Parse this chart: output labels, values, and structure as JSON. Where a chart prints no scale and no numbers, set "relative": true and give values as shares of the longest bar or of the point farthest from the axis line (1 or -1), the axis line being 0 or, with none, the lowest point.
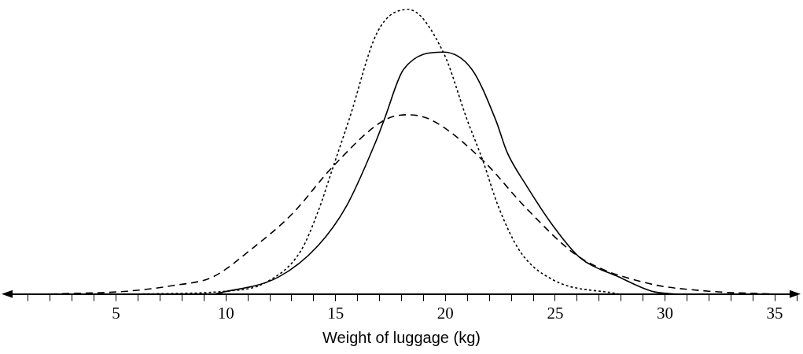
{
  "chart_data": {
    "type": "line",
    "xlabel": "Weight of luggage (kg)",
    "relative": true,
    "marker": "none",
    "grid": false,
    "legend": false,
    "xlim": [
      0,
      36
    ],
    "xticks": [
      {
        "value": 1,
        "label": null
      },
      {
        "value": 2,
        "label": null
      },
      {
        "value": 3,
        "label": null
      },
      {
        "value": 4,
        "label": null
      },
      5,
      {
        "value": 6,
        "label": null
      },
      {
        "value": 7,
        "label": null
      },
      {
        "value": 8,
        "label": null
      },
      {
        "value": 9,
        "label": null
      },
      10,
      {
        "value": 11,
        "label": null
      },
      {
        "value": 12,
        "label": null
      },
      {
        "value": 13,
        "label": null
      },
      {
        "value": 14,
        "label": null
      },
      15,
      {
        "value": 16,
        "label": null
      },
      {
        "value": 17,
        "label": null
      },
      {
        "value": 18,
        "label": null
      },
      {
        "value": 19,
        "label": null
      },
      20,
      {
        "value": 21,
        "label": null
      },
      {
        "value": 22,
        "label": null
      },
      {
        "value": 23,
        "label": null
      },
      {
        "value": 24,
        "label": null
      },
      25,
      {
        "value": 26,
        "label": null
      },
      {
        "value": 27,
        "label": null
      },
      {
        "value": 28,
        "label": null
      },
      {
        "value": 29,
        "label": null
      },
      30,
      {
        "value": 31,
        "label": null
      },
      {
        "value": 32,
        "label": null
      },
      {
        "value": 33,
        "label": null
      },
      {
        "value": 34,
        "label": null
      },
      35,
      {
        "value": 36,
        "label": null
      }
    ],
    "series": [
      {
        "color": "#000000",
        "line_style": "solid",
        "x": [
          9.5,
          12.4,
          14.2,
          15.5,
          16.8,
          17.2,
          18.1,
          19.9,
          21.2,
          22.3,
          22.8,
          23.7,
          24.9,
          26.1,
          27.9,
          29.4,
          30.5
        ],
        "values": [
          0,
          0.06,
          0.17,
          0.31,
          0.53,
          0.61,
          0.79,
          0.85,
          0.79,
          0.61,
          0.5,
          0.38,
          0.24,
          0.13,
          0.06,
          0.01,
          0
        ]
      },
      {
        "color": "#000000",
        "line_style": "dotted",
        "x": [
          6,
          10,
          11.8,
          13.4,
          14.2,
          14.9,
          15.6,
          16.9,
          18.3,
          19.9,
          21,
          21.7,
          22.4,
          23.4,
          24.9,
          27.9
        ],
        "values": [
          0,
          0.01,
          0.04,
          0.15,
          0.29,
          0.45,
          0.61,
          0.92,
          1,
          0.85,
          0.61,
          0.47,
          0.31,
          0.15,
          0.05,
          0
        ]
      },
      {
        "color": "#000000",
        "line_style": "dashed",
        "x": [
          2,
          5.5,
          7.6,
          9.4,
          11.2,
          13,
          14.9,
          17.2,
          18.3,
          19.4,
          21.7,
          23.7,
          26.1,
          29.1,
          32,
          35
        ],
        "values": [
          0,
          0.01,
          0.03,
          0.06,
          0.16,
          0.28,
          0.45,
          0.61,
          0.63,
          0.61,
          0.47,
          0.3,
          0.13,
          0.04,
          0.01,
          0
        ]
      }
    ]
  }
}
